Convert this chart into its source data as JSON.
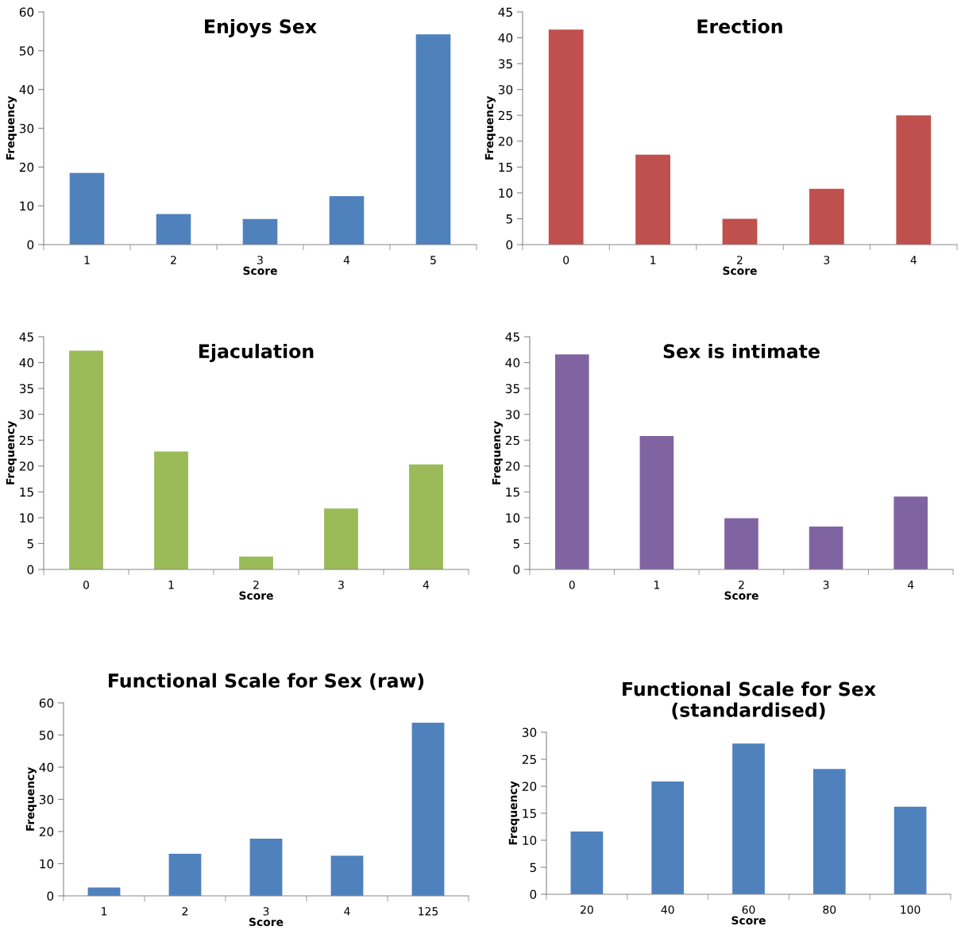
{
  "chart_data": [
    {
      "type": "bar",
      "title": "Enjoys Sex",
      "xlabel": "Score",
      "ylabel": "Frequency",
      "categories": [
        "1",
        "2",
        "3",
        "4",
        "5"
      ],
      "values": [
        18.5,
        7.9,
        6.6,
        12.5,
        54.2
      ],
      "color": "#4f81bd",
      "ylim": [
        0,
        60
      ],
      "yticks": [
        0,
        10,
        20,
        30,
        40,
        50,
        60
      ]
    },
    {
      "type": "bar",
      "title": "Erection",
      "xlabel": "Score",
      "ylabel": "Frequency",
      "categories": [
        "0",
        "1",
        "2",
        "3",
        "4"
      ],
      "values": [
        41.6,
        17.4,
        5.0,
        10.8,
        25.0
      ],
      "color": "#c0504d",
      "ylim": [
        0,
        45
      ],
      "yticks": [
        0,
        5,
        10,
        15,
        20,
        25,
        30,
        35,
        40,
        45
      ]
    },
    {
      "type": "bar",
      "title": "Ejaculation",
      "xlabel": "Score",
      "ylabel": "Frequency",
      "categories": [
        "0",
        "1",
        "2",
        "3",
        "4"
      ],
      "values": [
        42.3,
        22.8,
        2.5,
        11.8,
        20.3
      ],
      "color": "#9bbb59",
      "ylim": [
        0,
        45
      ],
      "yticks": [
        0,
        5,
        10,
        15,
        20,
        25,
        30,
        35,
        40,
        45
      ]
    },
    {
      "type": "bar",
      "title": "Sex is intimate",
      "xlabel": "Score",
      "ylabel": "Frequency",
      "categories": [
        "0",
        "1",
        "2",
        "3",
        "4"
      ],
      "values": [
        41.6,
        25.8,
        9.9,
        8.3,
        14.1
      ],
      "color": "#8064a2",
      "ylim": [
        0,
        45
      ],
      "yticks": [
        0,
        5,
        10,
        15,
        20,
        25,
        30,
        35,
        40,
        45
      ]
    },
    {
      "type": "bar",
      "title": "Functional Scale for Sex (raw)",
      "xlabel": "Score",
      "ylabel": "Frequency",
      "categories": [
        "1",
        "2",
        "3",
        "4",
        "125"
      ],
      "values": [
        2.6,
        13.1,
        17.8,
        12.5,
        53.8
      ],
      "color": "#4f81bd",
      "ylim": [
        0,
        60
      ],
      "yticks": [
        0,
        10,
        20,
        30,
        40,
        50,
        60
      ]
    },
    {
      "type": "bar",
      "title": "Functional Scale for Sex\n(standardised)",
      "xlabel": "Score",
      "ylabel": "Frequency",
      "categories": [
        "20",
        "40",
        "60",
        "80",
        "100"
      ],
      "values": [
        11.6,
        20.9,
        27.9,
        23.2,
        16.2
      ],
      "color": "#4f81bd",
      "ylim": [
        0,
        30
      ],
      "yticks": [
        0,
        5,
        10,
        15,
        20,
        25,
        30
      ]
    }
  ]
}
